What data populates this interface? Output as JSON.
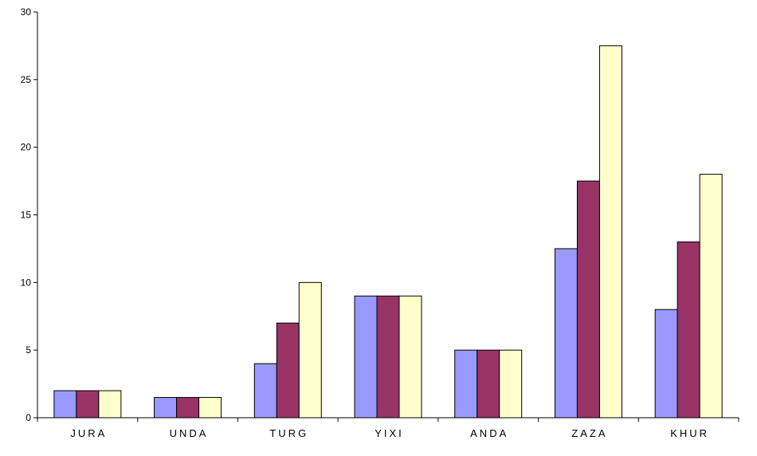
{
  "chart_data": {
    "type": "bar",
    "title": "",
    "xlabel": "",
    "ylabel": "",
    "ylim": [
      0,
      30
    ],
    "yticks": [
      0,
      5,
      10,
      15,
      20,
      25,
      30
    ],
    "grid": false,
    "legend": "none",
    "categories": [
      "JURA",
      "UNDA",
      "TURG",
      "YIXI",
      "ANDA",
      "ZAZA",
      "KHUR"
    ],
    "series": [
      {
        "color": "#9999FF",
        "values": [
          2,
          1.5,
          4,
          9,
          5,
          12.5,
          8
        ]
      },
      {
        "color": "#993366",
        "values": [
          2,
          1.5,
          7,
          9,
          5,
          17.5,
          13
        ]
      },
      {
        "color": "#FFFFCC",
        "values": [
          2,
          1.5,
          10,
          9,
          5,
          27.5,
          18
        ]
      }
    ]
  }
}
